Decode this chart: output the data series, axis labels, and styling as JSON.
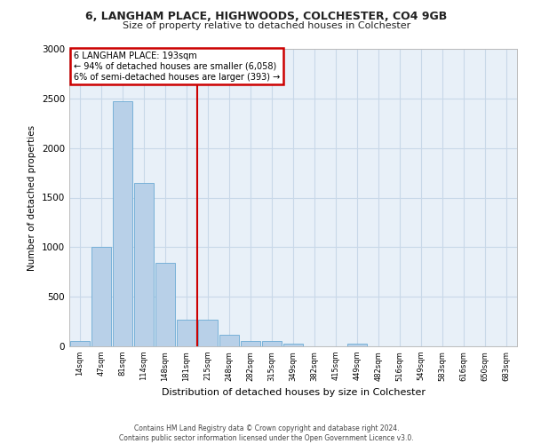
{
  "title_line1": "6, LANGHAM PLACE, HIGHWOODS, COLCHESTER, CO4 9GB",
  "title_line2": "Size of property relative to detached houses in Colchester",
  "xlabel": "Distribution of detached houses by size in Colchester",
  "ylabel": "Number of detached properties",
  "footer_line1": "Contains HM Land Registry data © Crown copyright and database right 2024.",
  "footer_line2": "Contains public sector information licensed under the Open Government Licence v3.0.",
  "categories": [
    "14sqm",
    "47sqm",
    "81sqm",
    "114sqm",
    "148sqm",
    "181sqm",
    "215sqm",
    "248sqm",
    "282sqm",
    "315sqm",
    "349sqm",
    "382sqm",
    "415sqm",
    "449sqm",
    "482sqm",
    "516sqm",
    "549sqm",
    "583sqm",
    "616sqm",
    "650sqm",
    "683sqm"
  ],
  "values": [
    50,
    1000,
    2470,
    1650,
    840,
    270,
    270,
    120,
    55,
    55,
    30,
    0,
    0,
    30,
    0,
    0,
    0,
    0,
    0,
    0,
    0
  ],
  "bar_color": "#b8d0e8",
  "bar_edge_color": "#6aaad4",
  "grid_color": "#c8d8e8",
  "background_color": "#e8f0f8",
  "vline_pos": 5.5,
  "vline_label": "6 LANGHAM PLACE: 193sqm",
  "annotation_line1": "← 94% of detached houses are smaller (6,058)",
  "annotation_line2": "6% of semi-detached houses are larger (393) →",
  "annotation_box_color": "#ffffff",
  "annotation_box_edge": "#cc0000",
  "vline_color": "#cc0000",
  "ylim": [
    0,
    3000
  ],
  "yticks": [
    0,
    500,
    1000,
    1500,
    2000,
    2500,
    3000
  ]
}
